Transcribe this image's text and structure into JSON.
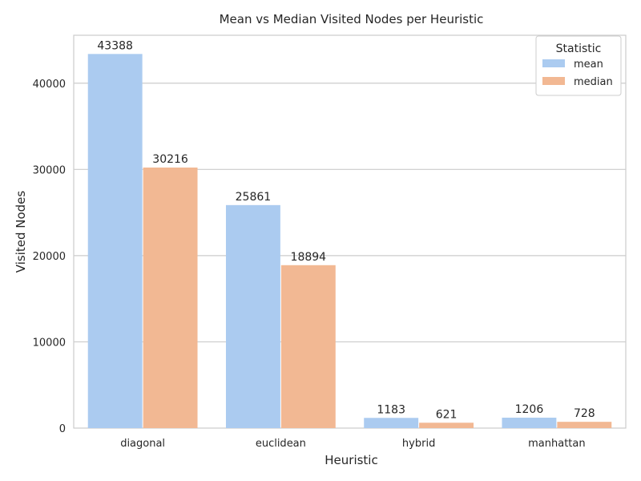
{
  "chart_data": {
    "type": "bar",
    "title": "Mean vs Median Visited Nodes per Heuristic",
    "xlabel": "Heuristic",
    "ylabel": "Visited Nodes",
    "categories": [
      "diagonal",
      "euclidean",
      "hybrid",
      "manhattan"
    ],
    "series": [
      {
        "name": "mean",
        "color": "#abcbf0",
        "values": [
          43388,
          25861,
          1183,
          1206
        ],
        "labels": [
          "43388",
          "25861",
          "1183",
          "1206"
        ]
      },
      {
        "name": "median",
        "color": "#f2b893",
        "values": [
          30216,
          18894,
          621,
          728
        ],
        "labels": [
          "30216",
          "18894",
          "621",
          "728"
        ]
      }
    ],
    "ylim": [
      0,
      45556
    ],
    "yticks": [
      0,
      10000,
      20000,
      30000,
      40000
    ],
    "ytick_labels": [
      "0",
      "10000",
      "20000",
      "30000",
      "40000"
    ],
    "grid": true,
    "legend": {
      "title": "Statistic",
      "placement": "top-right"
    }
  }
}
